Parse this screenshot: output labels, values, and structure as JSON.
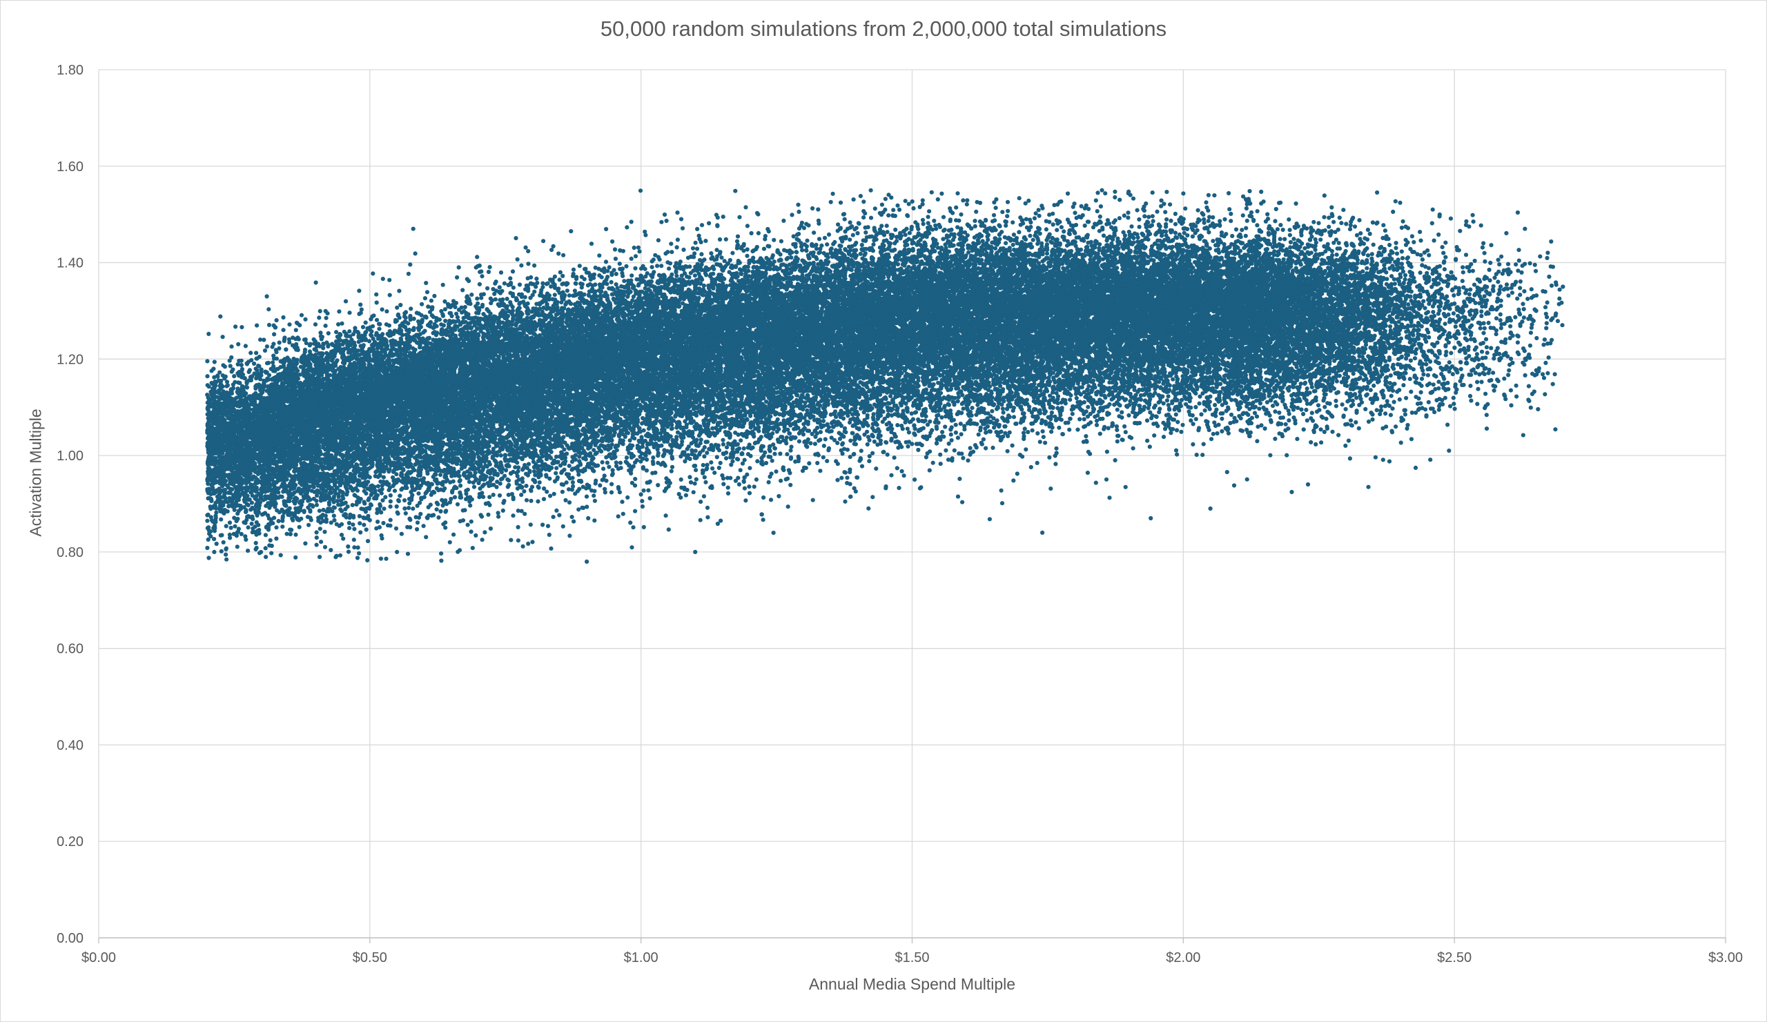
{
  "chart_data": {
    "type": "scatter",
    "title": "50,000 random simulations from 2,000,000 total simulations",
    "xlabel": "Annual Media Spend Multiple",
    "ylabel": "Activation Multiple",
    "xlim": [
      0,
      3
    ],
    "ylim": [
      0,
      1.8
    ],
    "x_ticks": [
      "$0.00",
      "$0.50",
      "$1.00",
      "$1.50",
      "$2.00",
      "$2.50",
      "$3.00"
    ],
    "y_ticks": [
      "0.00",
      "0.20",
      "0.40",
      "0.60",
      "0.80",
      "1.00",
      "1.20",
      "1.40",
      "1.60",
      "1.80"
    ],
    "grid": true,
    "legend": "none",
    "marker_color": "#1B5F82",
    "point_count_shown": 50000,
    "x_range_of_points": [
      0.2,
      2.7
    ],
    "y_range_of_points": [
      0.78,
      1.55
    ],
    "trend_profile": {
      "x": [
        0.2,
        0.5,
        1.0,
        1.5,
        2.0,
        2.5,
        2.7
      ],
      "y_center": [
        1.02,
        1.1,
        1.2,
        1.28,
        1.3,
        1.28,
        1.28
      ],
      "y_spread": [
        0.07,
        0.08,
        0.09,
        0.09,
        0.08,
        0.08,
        0.08
      ]
    },
    "notable_points": [
      {
        "x": 0.31,
        "y": 1.33
      },
      {
        "x": 0.58,
        "y": 1.47
      },
      {
        "x": 1.29,
        "y": 1.52
      },
      {
        "x": 1.85,
        "y": 1.55
      },
      {
        "x": 2.46,
        "y": 1.51
      },
      {
        "x": 2.63,
        "y": 1.47
      },
      {
        "x": 0.9,
        "y": 0.78
      },
      {
        "x": 0.55,
        "y": 0.8
      },
      {
        "x": 1.1,
        "y": 0.8
      },
      {
        "x": 0.23,
        "y": 0.82
      },
      {
        "x": 1.74,
        "y": 0.84
      },
      {
        "x": 1.94,
        "y": 0.87
      },
      {
        "x": 2.05,
        "y": 0.89
      },
      {
        "x": 2.23,
        "y": 0.94
      },
      {
        "x": 2.49,
        "y": 1.01
      },
      {
        "x": 2.7,
        "y": 1.35
      }
    ]
  }
}
